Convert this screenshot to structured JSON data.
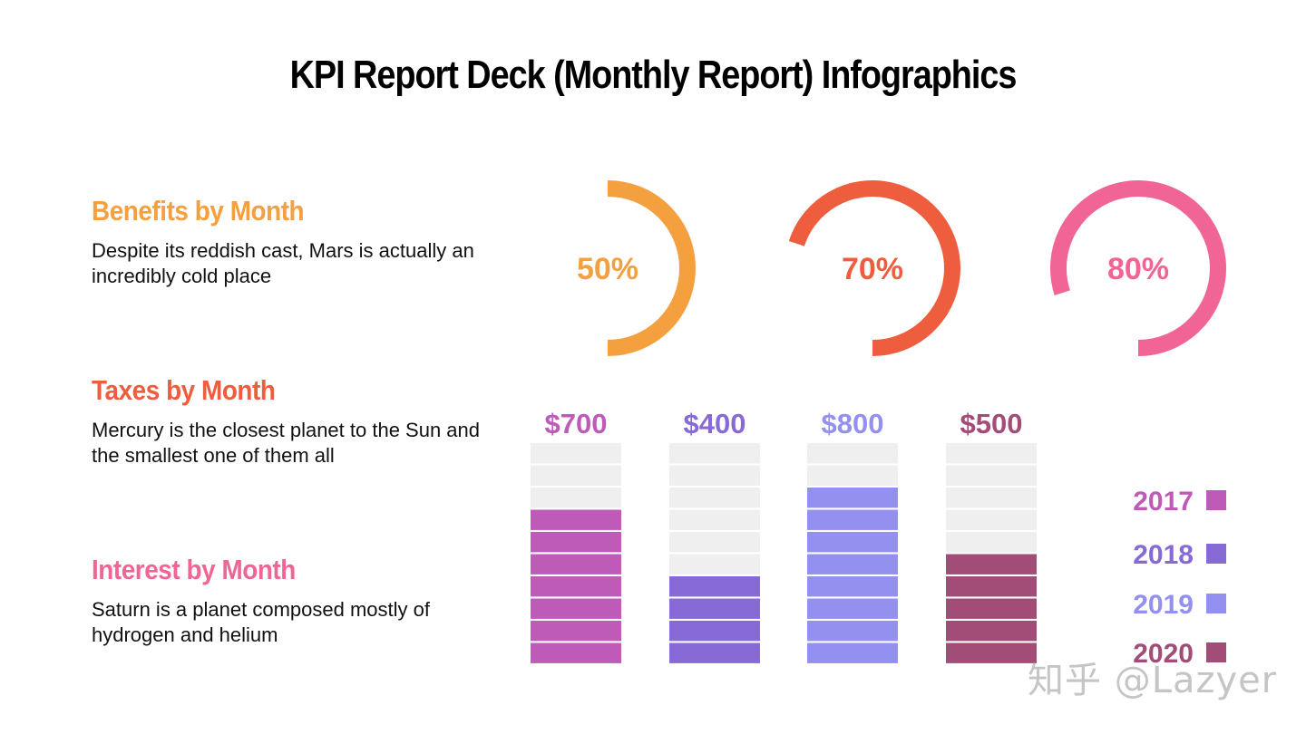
{
  "title": "KPI Report Deck (Monthly Report) Infographics",
  "sections": [
    {
      "heading": "Benefits by Month",
      "text": "Despite its reddish cast, Mars is actually an incredibly cold place",
      "color": "#f4a03f"
    },
    {
      "heading": "Taxes by Month",
      "text": "Mercury is the closest planet to the Sun and the smallest one of them all",
      "color": "#ee5e3e"
    },
    {
      "heading": "Interest by Month",
      "text": "Saturn is a planet composed mostly of hydrogen and helium",
      "color": "#f06595"
    }
  ],
  "watermark": "知乎 @Lazyer",
  "chart_data": [
    {
      "type": "donut-gauge",
      "gauges": [
        {
          "value": 50,
          "label": "50%",
          "color": "#f4a03f"
        },
        {
          "value": 70,
          "label": "70%",
          "color": "#ee5e3e"
        },
        {
          "value": 80,
          "label": "80%",
          "color": "#f06595"
        }
      ]
    },
    {
      "type": "bar",
      "max_segments": 10,
      "empty_color": "#efefef",
      "bars": [
        {
          "label": "$700",
          "value": 700,
          "segments": 7,
          "series": "2017",
          "color": "#be5bb9"
        },
        {
          "label": "$400",
          "value": 400,
          "segments": 4,
          "series": "2018",
          "color": "#876ad6"
        },
        {
          "label": "$800",
          "value": 800,
          "segments": 8,
          "series": "2019",
          "color": "#9390ef"
        },
        {
          "label": "$500",
          "value": 500,
          "segments": 5,
          "series": "2020",
          "color": "#a24d77"
        }
      ],
      "legend": [
        {
          "label": "2017",
          "color": "#be5bb9"
        },
        {
          "label": "2018",
          "color": "#876ad6"
        },
        {
          "label": "2019",
          "color": "#9390ef"
        },
        {
          "label": "2020",
          "color": "#a24d77"
        }
      ],
      "legend_placement": "right"
    }
  ]
}
